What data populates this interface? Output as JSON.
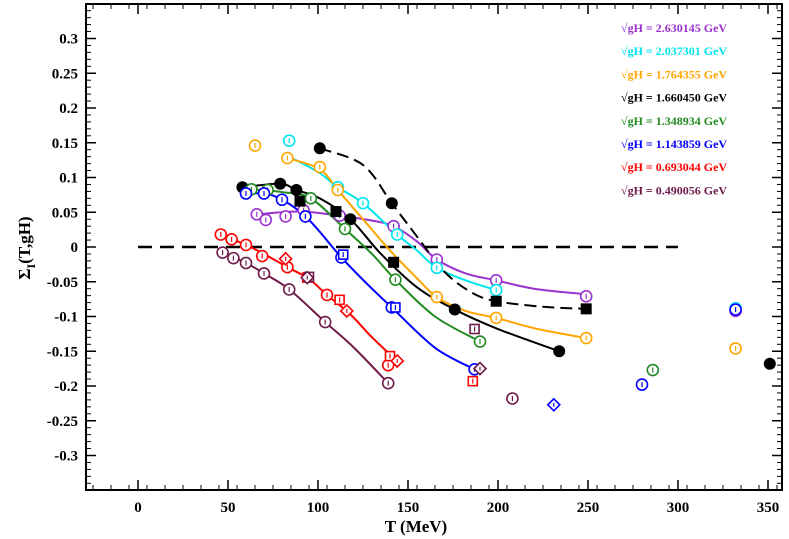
{
  "chart_data": {
    "type": "scatter",
    "title": "",
    "xlabel": "T (MeV)",
    "ylabel": "Σ_I(T,gH)",
    "ylabel_main": "Σ",
    "ylabel_sub": "I",
    "ylabel_rest": "(T,gH)",
    "xlim": [
      -28,
      358
    ],
    "ylim": [
      -0.35,
      0.35
    ],
    "xticks": [
      0,
      50,
      100,
      150,
      200,
      250,
      300,
      350
    ],
    "xtick_labels": [
      "0",
      "50",
      "100",
      "150",
      "200",
      "250",
      "300",
      "350"
    ],
    "yticks": [
      0.3,
      0.25,
      0.2,
      0.15,
      0.1,
      0.05,
      0,
      -0.05,
      -0.1,
      -0.15,
      -0.2,
      -0.25,
      -0.3
    ],
    "ytick_labels": [
      "0.3",
      "0.25",
      "0.2",
      "0.15",
      "0.1",
      "0.05",
      "0",
      "-0.05",
      "-0.1",
      "-0.15",
      "-0.2",
      "-0.25",
      "-0.3"
    ],
    "legend_position": "top-right",
    "zero_line": {
      "x": [
        0,
        300
      ],
      "y": 0
    },
    "series": [
      {
        "name": "√gH = 2.630145 GeV",
        "color": "#9a32cd",
        "marker": "circle-open",
        "points": [
          [
            66,
            0.047
          ],
          [
            71,
            0.039
          ],
          [
            82,
            0.044
          ],
          [
            92,
            0.053
          ],
          [
            112,
            0.045
          ],
          [
            142,
            0.03
          ],
          [
            166,
            -0.018
          ],
          [
            199,
            -0.048
          ],
          [
            249,
            -0.071
          ],
          [
            332,
            -0.092
          ]
        ],
        "curve": [
          [
            66,
            0.047
          ],
          [
            90,
            0.051
          ],
          [
            112,
            0.045
          ],
          [
            130,
            0.038
          ],
          [
            142,
            0.03
          ],
          [
            155,
            0.008
          ],
          [
            166,
            -0.018
          ],
          [
            182,
            -0.038
          ],
          [
            199,
            -0.048
          ],
          [
            220,
            -0.06
          ],
          [
            249,
            -0.068
          ]
        ]
      },
      {
        "name": "√gH = 2.037301 GeV",
        "color": "#00e5ee",
        "marker": "circle-open",
        "points": [
          [
            84,
            0.153
          ],
          [
            111,
            0.086
          ],
          [
            125,
            0.063
          ],
          [
            144,
            0.018
          ],
          [
            166,
            -0.03
          ],
          [
            199,
            -0.062
          ],
          [
            332,
            -0.088
          ]
        ],
        "curve": [
          [
            84,
            0.13
          ],
          [
            100,
            0.108
          ],
          [
            111,
            0.086
          ],
          [
            125,
            0.063
          ],
          [
            144,
            0.018
          ],
          [
            155,
            -0.005
          ],
          [
            166,
            -0.03
          ],
          [
            182,
            -0.048
          ],
          [
            199,
            -0.062
          ]
        ]
      },
      {
        "name": "√gH = 1.764355 GeV",
        "color": "#ffa500",
        "marker": "circle-open",
        "points": [
          [
            65,
            0.146
          ],
          [
            83,
            0.128
          ],
          [
            101,
            0.115
          ],
          [
            111,
            0.082
          ],
          [
            166,
            -0.072
          ],
          [
            199,
            -0.102
          ],
          [
            249,
            -0.131
          ],
          [
            332,
            -0.146
          ]
        ],
        "curve": [
          [
            83,
            0.128
          ],
          [
            101,
            0.112
          ],
          [
            111,
            0.082
          ],
          [
            125,
            0.04
          ],
          [
            140,
            -0.005
          ],
          [
            155,
            -0.045
          ],
          [
            166,
            -0.072
          ],
          [
            182,
            -0.092
          ],
          [
            199,
            -0.102
          ],
          [
            222,
            -0.118
          ],
          [
            249,
            -0.131
          ]
        ]
      },
      {
        "name": "√gH = 1.660450 GeV",
        "color": "#000000",
        "marker": "circle-filled",
        "points": [
          [
            58,
            0.086
          ],
          [
            79,
            0.091
          ],
          [
            88,
            0.082
          ],
          [
            101,
            0.142
          ],
          [
            118,
            0.04
          ],
          [
            141,
            0.063
          ],
          [
            176,
            -0.09
          ],
          [
            234,
            -0.15
          ],
          [
            351,
            -0.168
          ]
        ],
        "curve": [
          [
            58,
            0.086
          ],
          [
            79,
            0.091
          ],
          [
            88,
            0.082
          ],
          [
            101,
            0.07
          ],
          [
            118,
            0.04
          ],
          [
            135,
            -0.01
          ],
          [
            155,
            -0.058
          ],
          [
            176,
            -0.09
          ],
          [
            200,
            -0.118
          ],
          [
            234,
            -0.15
          ]
        ]
      },
      {
        "name": "√gH = 1.660450 GeV (dashed)",
        "color": "#000000",
        "marker": "square-filled",
        "dashed": true,
        "points": [
          [
            90,
            0.066
          ],
          [
            110,
            0.051
          ],
          [
            142,
            -0.022
          ],
          [
            199,
            -0.078
          ],
          [
            249,
            -0.089
          ]
        ],
        "curve": [
          [
            101,
            0.142
          ],
          [
            125,
            0.118
          ],
          [
            141,
            0.063
          ],
          [
            155,
            0.015
          ],
          [
            170,
            -0.035
          ],
          [
            185,
            -0.065
          ],
          [
            199,
            -0.078
          ],
          [
            225,
            -0.086
          ],
          [
            249,
            -0.089
          ]
        ]
      },
      {
        "name": "√gH = 1.348934 GeV",
        "color": "#228b22",
        "marker": "circle-open",
        "points": [
          [
            63,
            0.083
          ],
          [
            72,
            0.082
          ],
          [
            96,
            0.07
          ],
          [
            115,
            0.026
          ],
          [
            143,
            -0.047
          ],
          [
            190,
            -0.136
          ],
          [
            286,
            -0.177
          ]
        ],
        "curve": [
          [
            63,
            0.083
          ],
          [
            80,
            0.079
          ],
          [
            96,
            0.07
          ],
          [
            115,
            0.026
          ],
          [
            130,
            -0.01
          ],
          [
            143,
            -0.047
          ],
          [
            165,
            -0.1
          ],
          [
            190,
            -0.136
          ]
        ]
      },
      {
        "name": "√gH = 1.143859 GeV",
        "color": "#0000ff",
        "marker": "circle-open",
        "points": [
          [
            60,
            0.077
          ],
          [
            70,
            0.077
          ],
          [
            80,
            0.068
          ],
          [
            93,
            0.044
          ],
          [
            113,
            -0.015
          ],
          [
            141,
            -0.087
          ],
          [
            187,
            -0.176
          ],
          [
            280,
            -0.198
          ],
          [
            332,
            -0.09
          ]
        ],
        "squares": [
          [
            114,
            -0.011
          ],
          [
            143,
            -0.087
          ]
        ],
        "diamonds": [
          [
            231,
            -0.227
          ]
        ],
        "curve": [
          [
            60,
            0.077
          ],
          [
            75,
            0.074
          ],
          [
            93,
            0.044
          ],
          [
            113,
            -0.015
          ],
          [
            128,
            -0.055
          ],
          [
            141,
            -0.087
          ],
          [
            165,
            -0.145
          ],
          [
            187,
            -0.176
          ]
        ]
      },
      {
        "name": "√gH = 0.693044 GeV",
        "color": "#ff0000",
        "marker": "circle-open",
        "points": [
          [
            46,
            0.018
          ],
          [
            52,
            0.011
          ],
          [
            60,
            0.003
          ],
          [
            69,
            -0.013
          ],
          [
            83,
            -0.029
          ],
          [
            105,
            -0.069
          ],
          [
            139,
            -0.17
          ]
        ],
        "squares": [
          [
            94,
            -0.044
          ],
          [
            112,
            -0.076
          ],
          [
            140,
            -0.157
          ],
          [
            186,
            -0.193
          ]
        ],
        "diamonds": [
          [
            82,
            -0.017
          ],
          [
            116,
            -0.092
          ],
          [
            144,
            -0.164
          ]
        ],
        "curve": [
          [
            46,
            0.018
          ],
          [
            60,
            0.003
          ],
          [
            70,
            -0.01
          ],
          [
            83,
            -0.029
          ],
          [
            95,
            -0.046
          ],
          [
            105,
            -0.069
          ],
          [
            118,
            -0.097
          ],
          [
            130,
            -0.13
          ],
          [
            144,
            -0.164
          ]
        ]
      },
      {
        "name": "√gH = 0.490056 GeV",
        "color": "#6e1a4a",
        "marker": "circle-open",
        "points": [
          [
            47,
            -0.008
          ],
          [
            53,
            -0.016
          ],
          [
            60,
            -0.023
          ],
          [
            70,
            -0.038
          ],
          [
            84,
            -0.061
          ],
          [
            104,
            -0.108
          ],
          [
            139,
            -0.196
          ],
          [
            208,
            -0.218
          ]
        ],
        "squares": [
          [
            95,
            -0.043
          ],
          [
            187,
            -0.118
          ]
        ],
        "diamonds": [
          [
            94,
            -0.044
          ],
          [
            190,
            -0.175
          ]
        ],
        "curve": [
          [
            47,
            -0.008
          ],
          [
            60,
            -0.023
          ],
          [
            70,
            -0.038
          ],
          [
            84,
            -0.061
          ],
          [
            104,
            -0.108
          ],
          [
            120,
            -0.145
          ],
          [
            139,
            -0.196
          ]
        ]
      }
    ]
  },
  "legend": [
    {
      "label": "√gH = 2.630145  GeV",
      "color": "#9a32cd"
    },
    {
      "label": "√gH = 2.037301  GeV",
      "color": "#00e5ee"
    },
    {
      "label": "√gH = 1.764355  GeV",
      "color": "#ffa500"
    },
    {
      "label": "√gH = 1.660450  GeV",
      "color": "#000000"
    },
    {
      "label": "√gH = 1.348934  GeV",
      "color": "#228b22"
    },
    {
      "label": "√gH = 1.143859  GeV",
      "color": "#0000ff"
    },
    {
      "label": "√gH = 0.693044  GeV",
      "color": "#ff0000"
    },
    {
      "label": "√gH = 0.490056  GeV",
      "color": "#6e1a4a"
    }
  ]
}
